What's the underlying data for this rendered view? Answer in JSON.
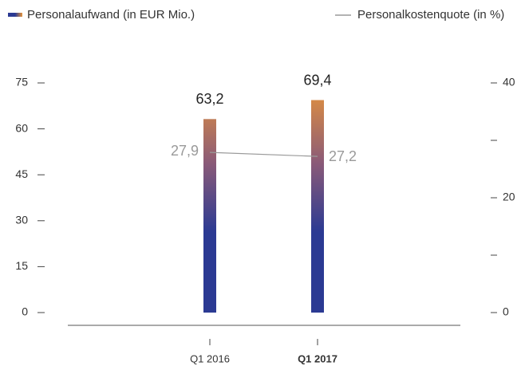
{
  "chart_data": {
    "type": "bar",
    "categories": [
      "Q1 2016",
      "Q1 2017"
    ],
    "highlight_index": 1,
    "series": [
      {
        "name": "Personalaufwand (in EUR Mio.)",
        "type": "bar",
        "gradient": [
          "#2b3a93",
          "#e8953a"
        ],
        "values": [
          63.2,
          69.4
        ],
        "value_labels": [
          "63,2",
          "69,4"
        ]
      },
      {
        "name": "Personalkostenquote (in %)",
        "type": "line",
        "axis": "y2",
        "color": "#9a9a9a",
        "values": [
          27.9,
          27.2
        ],
        "value_labels": [
          "27,9",
          "27,2"
        ]
      }
    ],
    "ylim": [
      0,
      75
    ],
    "yticks": [
      0,
      15,
      30,
      45,
      60,
      75
    ],
    "y2lim": [
      0,
      40
    ],
    "y2ticks": [
      0,
      20,
      40
    ],
    "y2minor_ticks": [
      10,
      30
    ],
    "grid": false
  }
}
